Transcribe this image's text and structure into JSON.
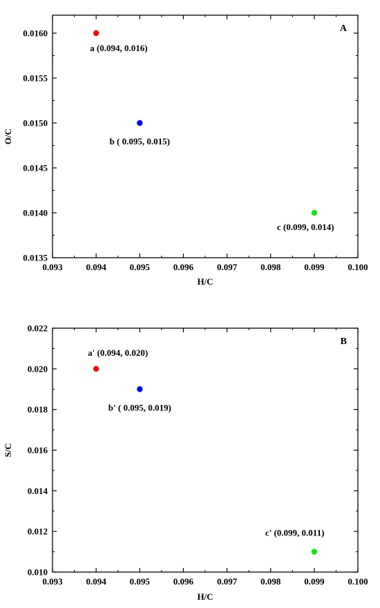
{
  "chart_data": [
    {
      "type": "scatter",
      "panel_label": "A",
      "xlabel": "H/C",
      "ylabel": "O/C",
      "xlim": [
        0.093,
        0.1
      ],
      "ylim": [
        0.0135,
        0.0162
      ],
      "x_ticks": [
        "0.093",
        "0.094",
        "0.095",
        "0.096",
        "0.097",
        "0.098",
        "0.099",
        "0.100"
      ],
      "y_ticks": [
        "0.0135",
        "0.0140",
        "0.0145",
        "0.0150",
        "0.0155",
        "0.0160"
      ],
      "y_tick_values": [
        0.0135,
        0.014,
        0.0145,
        0.015,
        0.0155,
        0.016
      ],
      "grid": false,
      "points": [
        {
          "x": 0.094,
          "y": 0.016,
          "label": "a (0.094, 0.016)",
          "color": "#ff0000",
          "label_pos": "below-right"
        },
        {
          "x": 0.095,
          "y": 0.015,
          "label": "b ( 0.095, 0.015)",
          "color": "#0000ff",
          "label_pos": "below"
        },
        {
          "x": 0.099,
          "y": 0.014,
          "label": "c (0.099, 0.014)",
          "color": "#00ee00",
          "label_pos": "below-left"
        }
      ]
    },
    {
      "type": "scatter",
      "panel_label": "B",
      "xlabel": "H/C",
      "ylabel": "S/C",
      "xlim": [
        0.093,
        0.1
      ],
      "ylim": [
        0.01,
        0.022
      ],
      "x_ticks": [
        "0.093",
        "0.094",
        "0.095",
        "0.096",
        "0.097",
        "0.098",
        "0.099",
        "0.100"
      ],
      "y_ticks": [
        "0.010",
        "0.012",
        "0.014",
        "0.016",
        "0.018",
        "0.020",
        "0.022"
      ],
      "y_tick_values": [
        0.01,
        0.012,
        0.014,
        0.016,
        0.018,
        0.02,
        0.022
      ],
      "grid": false,
      "points": [
        {
          "x": 0.094,
          "y": 0.02,
          "label": "a' (0.094, 0.020)",
          "color": "#ff0000",
          "label_pos": "above"
        },
        {
          "x": 0.095,
          "y": 0.019,
          "label": "b' ( 0.095, 0.019)",
          "color": "#0000ff",
          "label_pos": "below"
        },
        {
          "x": 0.099,
          "y": 0.011,
          "label": "c' (0.099, 0.011)",
          "color": "#00ee00",
          "label_pos": "above-left"
        }
      ]
    }
  ]
}
